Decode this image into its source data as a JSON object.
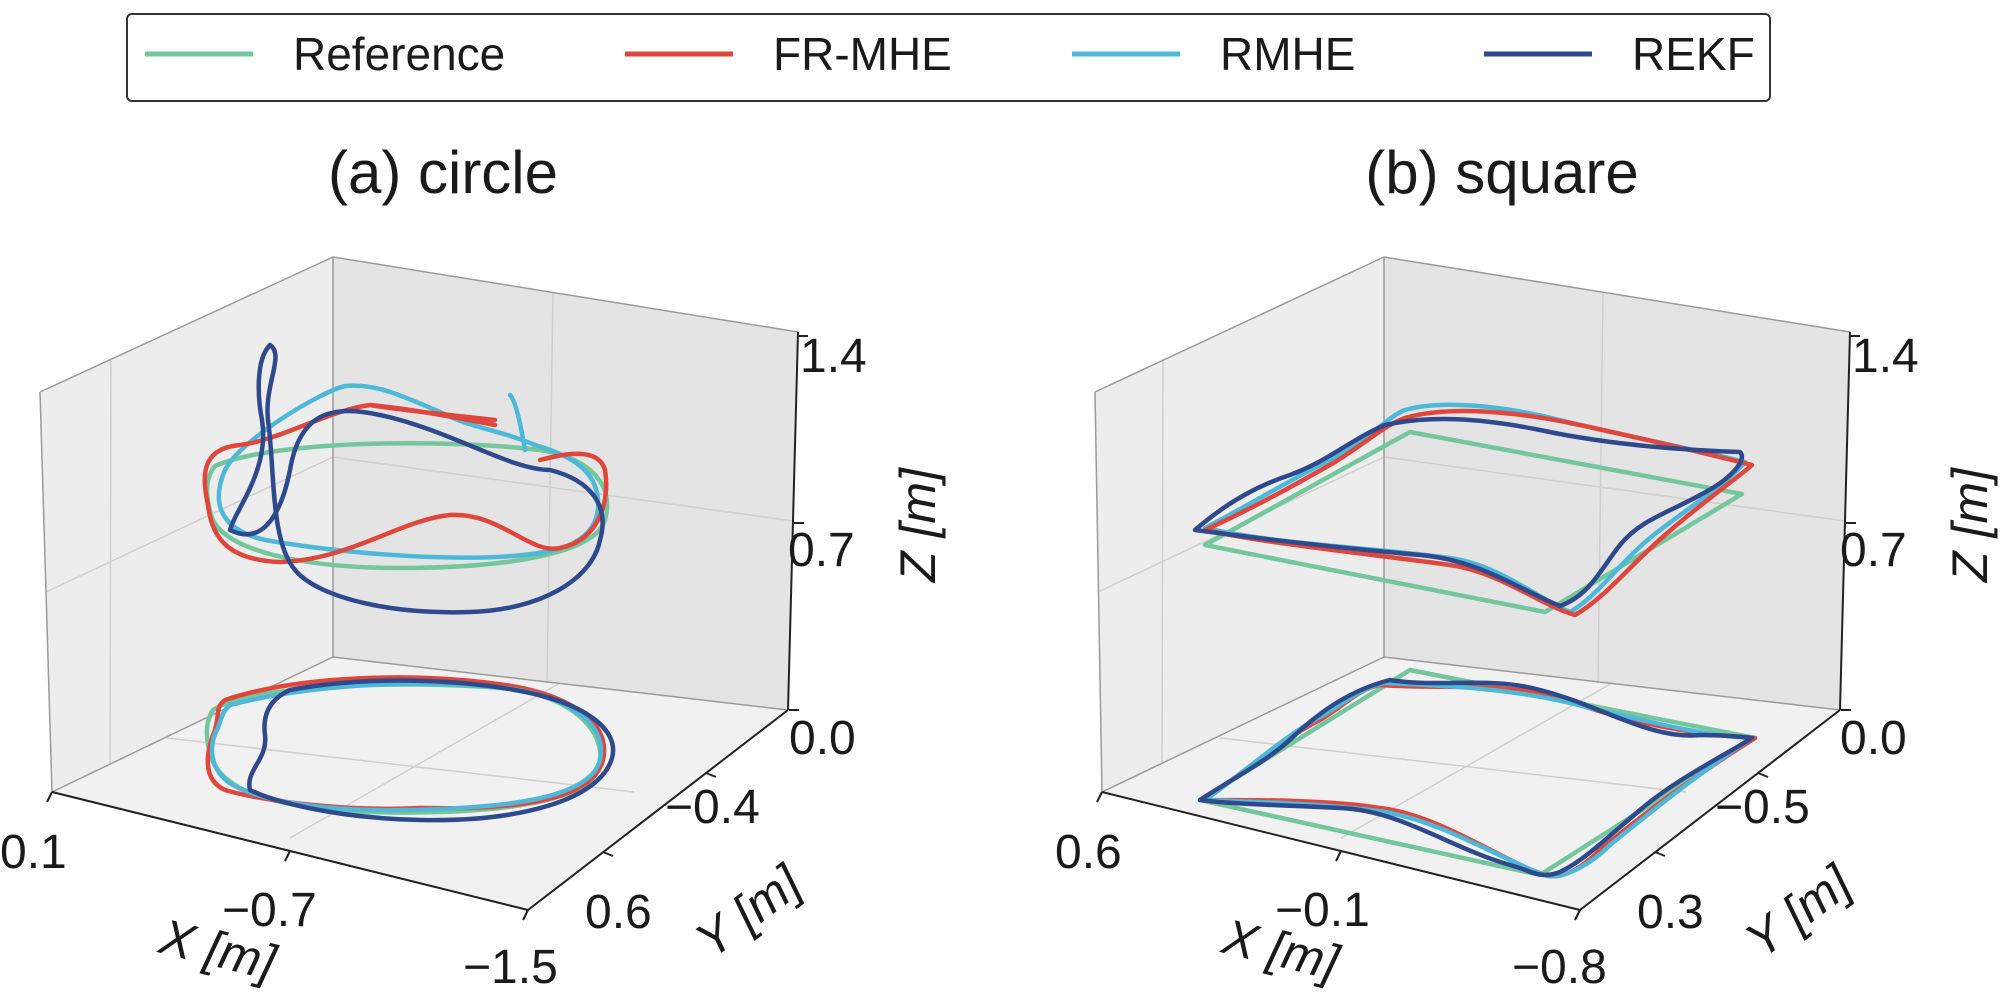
{
  "legend": {
    "entries": [
      {
        "name": "Reference",
        "color": "#74c69d"
      },
      {
        "name": "FR-MHE",
        "color": "#e0463c"
      },
      {
        "name": "RMHE",
        "color": "#4db8d8"
      },
      {
        "name": "REKF",
        "color": "#2e4a8c"
      }
    ],
    "placement": "top-center"
  },
  "chart_data": [
    {
      "type": "line",
      "projection": "3d",
      "title": "(a) circle",
      "xlabel": "X [m]",
      "ylabel": "Y [m]",
      "zlabel": "Z [m]",
      "x_ticks": [
        "0.1",
        "−0.7",
        "−1.5"
      ],
      "y_ticks": [
        "−0.4",
        "0.6"
      ],
      "z_ticks": [
        "0.0",
        "0.7",
        "1.4"
      ],
      "xlim": [
        0.1,
        -1.5
      ],
      "ylim": [
        -0.4,
        0.6
      ],
      "zlim": [
        0.0,
        1.4
      ],
      "grid": true,
      "series": [
        {
          "name": "Reference",
          "shape": "circle"
        },
        {
          "name": "FR-MHE",
          "shape": "circle"
        },
        {
          "name": "RMHE",
          "shape": "circle"
        },
        {
          "name": "REKF",
          "shape": "circle"
        }
      ],
      "note_projection": "trajectories shown in 3D and projected onto the floor plane (z = 0)"
    },
    {
      "type": "line",
      "projection": "3d",
      "title": "(b) square",
      "xlabel": "X [m]",
      "ylabel": "Y [m]",
      "zlabel": "Z [m]",
      "x_ticks": [
        "0.6",
        "−0.1",
        "−0.8"
      ],
      "y_ticks": [
        "−0.5",
        "0.3"
      ],
      "z_ticks": [
        "0.0",
        "0.7",
        "1.4"
      ],
      "xlim": [
        0.6,
        -0.8
      ],
      "ylim": [
        -0.5,
        0.3
      ],
      "zlim": [
        0.0,
        1.4
      ],
      "grid": true,
      "series": [
        {
          "name": "Reference",
          "shape": "square"
        },
        {
          "name": "FR-MHE",
          "shape": "square"
        },
        {
          "name": "RMHE",
          "shape": "square"
        },
        {
          "name": "REKF",
          "shape": "square"
        }
      ]
    }
  ]
}
